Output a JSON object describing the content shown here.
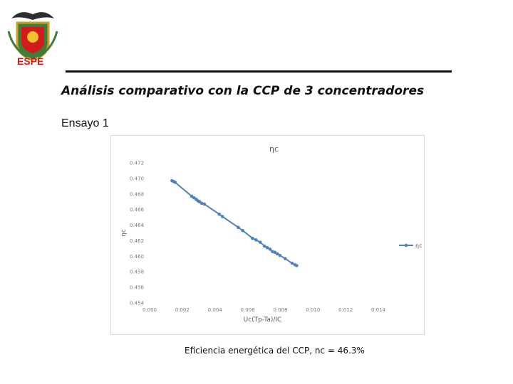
{
  "header": {
    "logo_text": "ESPE",
    "title": "Análisis comparativo con la CCP de 3 concentradores",
    "subtitle": "Ensayo 1",
    "caption": "Eficiencia energética del CCP, nc = 46.3%"
  },
  "colors": {
    "series": "#4f81bd",
    "logo_red": "#d21c1c"
  },
  "chart_data": {
    "type": "line",
    "title": "ηc",
    "xlabel": "Uc(Tp-Ta)/IC",
    "ylabel": "ηc",
    "xlim": [
      0.0,
      0.014
    ],
    "ylim": [
      0.454,
      0.472
    ],
    "x_ticks": [
      "0.000",
      "0.002",
      "0.004",
      "0.006",
      "0.008",
      "0.010",
      "0.012",
      "0.014"
    ],
    "y_ticks": [
      "0.472",
      "0.470",
      "0.468",
      "0.466",
      "0.464",
      "0.462",
      "0.460",
      "0.458",
      "0.456",
      "0.454"
    ],
    "legend_position": "right",
    "grid": false,
    "series": [
      {
        "name": "ηc",
        "x": [
          0.00137,
          0.00147,
          0.00156,
          0.00258,
          0.00272,
          0.00286,
          0.00297,
          0.00306,
          0.00319,
          0.00335,
          0.00426,
          0.00446,
          0.00543,
          0.0057,
          0.0063,
          0.00651,
          0.00677,
          0.00703,
          0.0072,
          0.00737,
          0.00752,
          0.00767,
          0.00782,
          0.00798,
          0.0083,
          0.00872,
          0.0089,
          0.009
        ],
        "y": [
          0.4697,
          0.4696,
          0.4695,
          0.4677,
          0.4675,
          0.4673,
          0.4671,
          0.467,
          0.4668,
          0.4667,
          0.4654,
          0.4651,
          0.4637,
          0.4633,
          0.4623,
          0.4621,
          0.4618,
          0.4613,
          0.4611,
          0.4609,
          0.4606,
          0.4605,
          0.4603,
          0.4601,
          0.4597,
          0.4591,
          0.4589,
          0.4588
        ]
      }
    ]
  }
}
